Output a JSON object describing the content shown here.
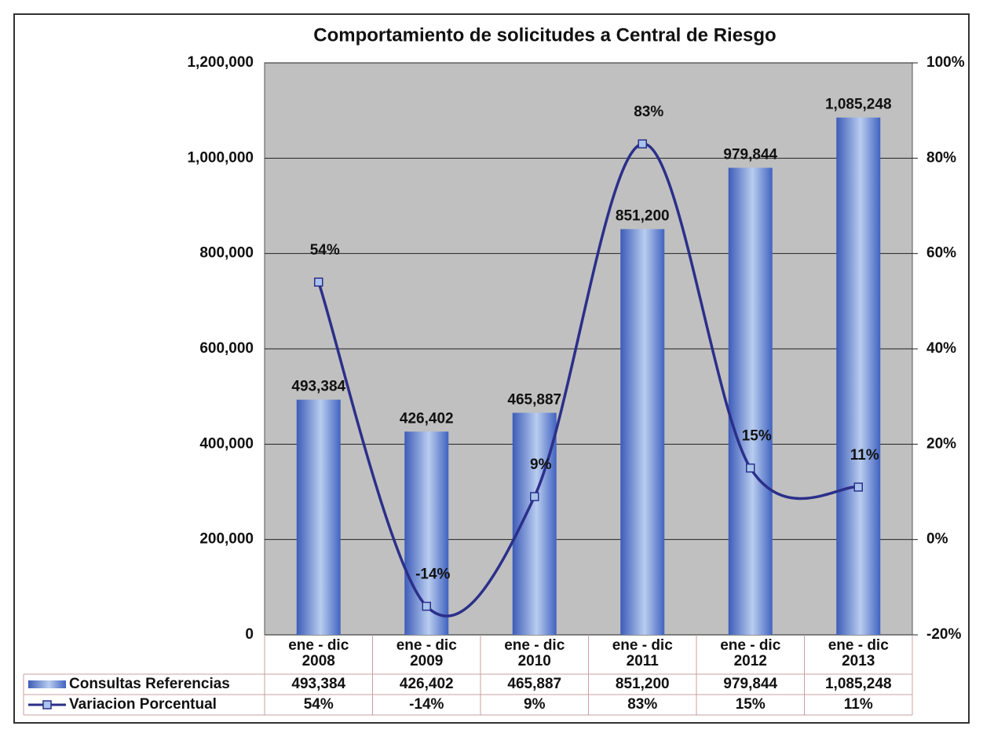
{
  "chart_data": {
    "type": "bar-line",
    "title": "Comportamiento de solicitudes a Central de Riesgo",
    "categories": [
      "ene - dic 2008",
      "ene - dic 2009",
      "ene - dic 2010",
      "ene - dic 2011",
      "ene - dic 2012",
      "ene - dic 2013"
    ],
    "series": [
      {
        "name": "Consultas Referencias",
        "type": "bar",
        "color": "#4a6cc6",
        "values": [
          493384,
          426402,
          465887,
          851200,
          979844,
          1085248
        ],
        "value_labels": [
          "493,384",
          "426,402",
          "465,887",
          "851,200",
          "979,844",
          "1,085,248"
        ]
      },
      {
        "name": "Variacion Porcentual",
        "type": "line",
        "axis": "y2",
        "color": "#2b2f8a",
        "values": [
          54,
          -14,
          9,
          83,
          15,
          11
        ],
        "value_labels": [
          "54%",
          "-14%",
          "9%",
          "83%",
          "15%",
          "11%"
        ]
      }
    ],
    "ylim": [
      0,
      1200000
    ],
    "yticks": [
      0,
      {
        "value": 200000,
        "label": "200,000"
      },
      {
        "value": 400000,
        "label": "400,000"
      },
      {
        "value": 600000,
        "label": "600,000"
      },
      {
        "value": 800000,
        "label": "800,000"
      },
      {
        "value": 1000000,
        "label": "1,000,000"
      },
      {
        "value": 1200000,
        "label": "1,200,000"
      }
    ],
    "y2lim": [
      -20,
      100
    ],
    "y2ticks": [
      {
        "value": -20,
        "label": "-20%"
      },
      {
        "value": 0,
        "label": "0%"
      },
      {
        "value": 20,
        "label": "20%"
      },
      {
        "value": 40,
        "label": "40%"
      },
      {
        "value": 60,
        "label": "60%"
      },
      {
        "value": 80,
        "label": "80%"
      },
      {
        "value": 100,
        "label": "100%"
      }
    ],
    "grid": true
  }
}
